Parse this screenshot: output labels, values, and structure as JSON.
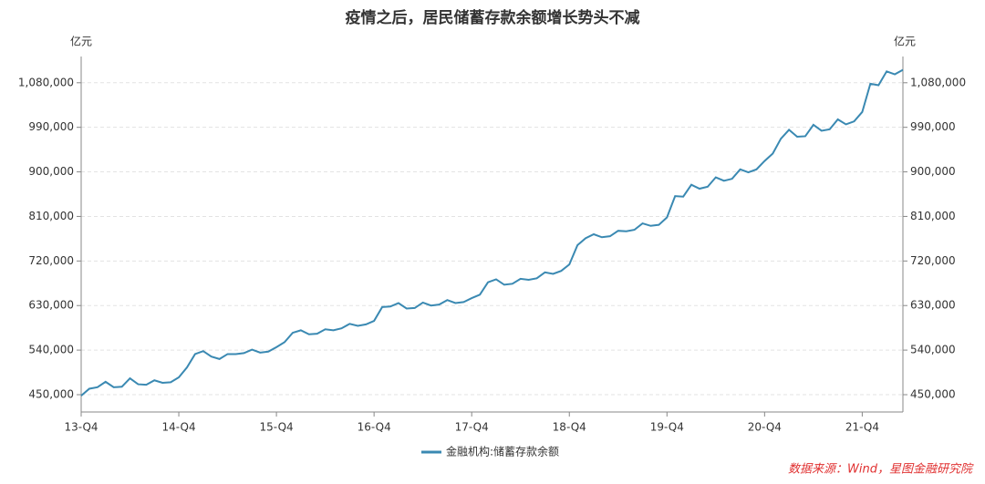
{
  "chart_data": {
    "type": "line",
    "title": "疫情之后，居民储蓄存款余额增长势头不减",
    "y_unit": "亿元",
    "source": "数据来源：Wind，星图金融研究院",
    "categories": [
      "13-Q4",
      null,
      null,
      null,
      null,
      null,
      null,
      null,
      null,
      null,
      null,
      null,
      "14-Q4",
      null,
      null,
      null,
      null,
      null,
      null,
      null,
      null,
      null,
      null,
      null,
      "15-Q4",
      null,
      null,
      null,
      null,
      null,
      null,
      null,
      null,
      null,
      null,
      null,
      "16-Q4",
      null,
      null,
      null,
      null,
      null,
      null,
      null,
      null,
      null,
      null,
      null,
      "17-Q4",
      null,
      null,
      null,
      null,
      null,
      null,
      null,
      null,
      null,
      null,
      null,
      "18-Q4",
      null,
      null,
      null,
      null,
      null,
      null,
      null,
      null,
      null,
      null,
      null,
      "19-Q4",
      null,
      null,
      null,
      null,
      null,
      null,
      null,
      null,
      null,
      null,
      null,
      "20-Q4",
      null,
      null,
      null,
      null,
      null,
      null,
      null,
      null,
      null,
      null,
      null,
      "21-Q4",
      null,
      null,
      null,
      null,
      null
    ],
    "series": [
      {
        "name": "金融机构:储蓄存款余额",
        "color": "#3a89b2",
        "values": [
          448000,
          462000,
          465000,
          476000,
          465000,
          466000,
          483000,
          471000,
          470000,
          479000,
          474000,
          475000,
          485000,
          505000,
          532000,
          538000,
          527000,
          522000,
          532000,
          532000,
          534000,
          541000,
          535000,
          537000,
          546000,
          556000,
          575000,
          580000,
          572000,
          573000,
          582000,
          580000,
          584000,
          593000,
          589000,
          592000,
          599000,
          627000,
          628000,
          635000,
          624000,
          625000,
          636000,
          630000,
          632000,
          641000,
          635000,
          637000,
          645000,
          652000,
          677000,
          683000,
          672000,
          674000,
          684000,
          682000,
          685000,
          697000,
          694000,
          700000,
          713000,
          752000,
          766000,
          774000,
          768000,
          770000,
          781000,
          780000,
          783000,
          796000,
          791000,
          793000,
          808000,
          851000,
          850000,
          874000,
          866000,
          870000,
          889000,
          882000,
          886000,
          905000,
          899000,
          905000,
          922000,
          937000,
          967000,
          985000,
          971000,
          972000,
          995000,
          983000,
          986000,
          1006000,
          996000,
          1002000,
          1021000,
          1078000,
          1075000,
          1103000,
          1097000,
          1106000
        ]
      }
    ],
    "ylim": [
      415000,
      1133000
    ],
    "yticks": [
      {
        "value": 450000,
        "label": "450,000"
      },
      {
        "value": 540000,
        "label": "540,000"
      },
      {
        "value": 630000,
        "label": "630,000"
      },
      {
        "value": 720000,
        "label": "720,000"
      },
      {
        "value": 810000,
        "label": "810,000"
      },
      {
        "value": 900000,
        "label": "900,000"
      },
      {
        "value": 990000,
        "label": "990,000"
      },
      {
        "value": 1080000,
        "label": "1,080,000"
      }
    ],
    "grid": true
  }
}
